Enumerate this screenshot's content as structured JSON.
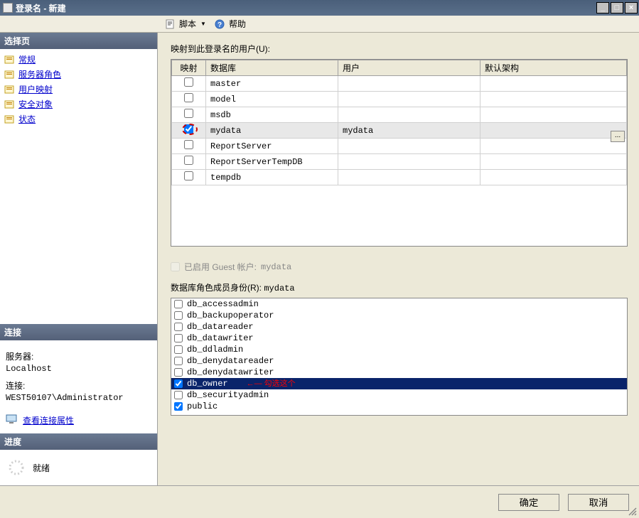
{
  "window": {
    "title": "登录名 - 新建",
    "ctrl": {
      "min": "_",
      "max": "□",
      "close": "×"
    }
  },
  "toolbar": {
    "script_label": "脚本",
    "help_label": "帮助"
  },
  "sidebar": {
    "select_page_header": "选择页",
    "items": [
      {
        "label": "常规"
      },
      {
        "label": "服务器角色"
      },
      {
        "label": "用户映射"
      },
      {
        "label": "安全对象"
      },
      {
        "label": "状态"
      }
    ],
    "connect_header": "连接",
    "server_label": "服务器:",
    "server_value": "Localhost",
    "conn_label": "连接:",
    "conn_value": "WEST50107\\Administrator",
    "view_props_label": "查看连接属性",
    "progress_header": "进度",
    "progress_status": "就绪"
  },
  "main": {
    "mapping_label": "映射到此登录名的用户(U):",
    "columns": {
      "map": "映射",
      "db": "数据库",
      "user": "用户",
      "schema": "默认架构"
    },
    "rows": [
      {
        "checked": false,
        "db": "master",
        "user": "",
        "schema": "",
        "selected": false
      },
      {
        "checked": false,
        "db": "model",
        "user": "",
        "schema": "",
        "selected": false
      },
      {
        "checked": false,
        "db": "msdb",
        "user": "",
        "schema": "",
        "selected": false
      },
      {
        "checked": true,
        "db": "mydata",
        "user": "mydata",
        "schema": "",
        "selected": true,
        "circled": true,
        "ellipsis": true
      },
      {
        "checked": false,
        "db": "ReportServer",
        "user": "",
        "schema": "",
        "selected": false
      },
      {
        "checked": false,
        "db": "ReportServerTempDB",
        "user": "",
        "schema": "",
        "selected": false
      },
      {
        "checked": false,
        "db": "tempdb",
        "user": "",
        "schema": "",
        "selected": false
      }
    ],
    "guest_label_prefix": "已启用 Guest 帐户:",
    "guest_db": "mydata",
    "roles_label_prefix": "数据库角色成员身份(R):",
    "roles_db": "mydata",
    "roles": [
      {
        "name": "db_accessadmin",
        "checked": false
      },
      {
        "name": "db_backupoperator",
        "checked": false
      },
      {
        "name": "db_datareader",
        "checked": false
      },
      {
        "name": "db_datawriter",
        "checked": false
      },
      {
        "name": "db_ddladmin",
        "checked": false
      },
      {
        "name": "db_denydatareader",
        "checked": false
      },
      {
        "name": "db_denydatawriter",
        "checked": false
      },
      {
        "name": "db_owner",
        "checked": true,
        "selected": true,
        "annotation": "←— 勾选这个"
      },
      {
        "name": "db_securityadmin",
        "checked": false
      },
      {
        "name": "public",
        "checked": true
      }
    ]
  },
  "buttons": {
    "ok": "确定",
    "cancel": "取消"
  },
  "colors": {
    "title_bg": "#4a5f7a",
    "panel_bg": "#ece9d8",
    "header_bg": "#6a7a92",
    "selected_row_bg": "#0a246a",
    "annotation_red": "#cc0000",
    "link": "#0000cc"
  }
}
